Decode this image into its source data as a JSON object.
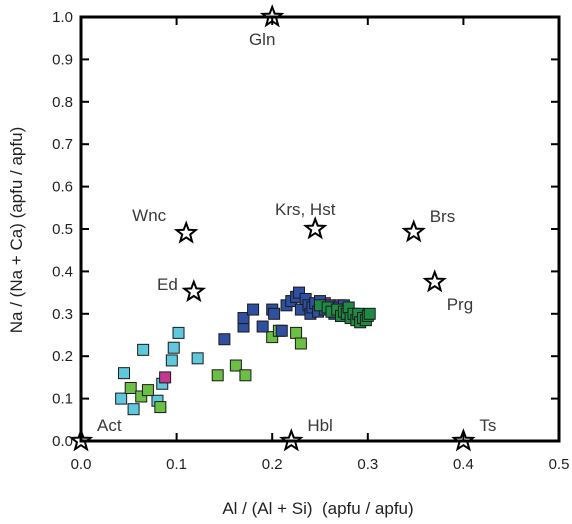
{
  "chart_data": {
    "type": "scatter",
    "title": "",
    "xlabel": "Al / (Al + Si)  (apfu / apfu)",
    "ylabel": "Na / (Na + Ca) (apfu / apfu)",
    "xlim": [
      0.0,
      0.5
    ],
    "ylim": [
      0.0,
      1.0
    ],
    "x_ticks": [
      "0.0",
      "0.1",
      "0.2",
      "0.3",
      "0.4",
      "0.5"
    ],
    "y_ticks": [
      "0.0",
      "0.1",
      "0.2",
      "0.3",
      "0.4",
      "0.5",
      "0.6",
      "0.7",
      "0.8",
      "0.9",
      "1.0"
    ],
    "grid": false,
    "end_members": [
      {
        "label": "Gln",
        "x": 0.2,
        "y": 1.0,
        "label_pos": "below"
      },
      {
        "label": "Wnc",
        "x": 0.11,
        "y": 0.49,
        "label_pos": "upper-left"
      },
      {
        "label": "Krs, Hst",
        "x": 0.245,
        "y": 0.5,
        "label_pos": "above"
      },
      {
        "label": "Brs",
        "x": 0.348,
        "y": 0.493,
        "label_pos": "upper-right"
      },
      {
        "label": "Ed",
        "x": 0.118,
        "y": 0.352,
        "label_pos": "left"
      },
      {
        "label": "Prg",
        "x": 0.37,
        "y": 0.375,
        "label_pos": "lower-right"
      },
      {
        "label": "Act",
        "x": 0.0,
        "y": 0.0,
        "label_pos": "upper-right"
      },
      {
        "label": "Hbl",
        "x": 0.22,
        "y": 0.0,
        "label_pos": "upper-right"
      },
      {
        "label": "Ts",
        "x": 0.4,
        "y": 0.0,
        "label_pos": "upper-right"
      }
    ],
    "colors": {
      "light_blue": "#5fc8dc",
      "dark_blue": "#2f4fa0",
      "light_green": "#6cbf45",
      "dark_green": "#1f8a45",
      "magenta": "#c2388f"
    },
    "series": [
      {
        "color": "light_blue",
        "points": [
          [
            0.042,
            0.1
          ],
          [
            0.045,
            0.16
          ],
          [
            0.055,
            0.075
          ],
          [
            0.065,
            0.215
          ],
          [
            0.08,
            0.095
          ],
          [
            0.085,
            0.135
          ],
          [
            0.095,
            0.19
          ],
          [
            0.097,
            0.22
          ],
          [
            0.102,
            0.255
          ],
          [
            0.122,
            0.195
          ]
        ]
      },
      {
        "color": "light_green",
        "points": [
          [
            0.052,
            0.125
          ],
          [
            0.063,
            0.105
          ],
          [
            0.07,
            0.12
          ],
          [
            0.083,
            0.08
          ],
          [
            0.143,
            0.155
          ],
          [
            0.162,
            0.178
          ],
          [
            0.172,
            0.155
          ],
          [
            0.2,
            0.245
          ],
          [
            0.207,
            0.26
          ],
          [
            0.225,
            0.255
          ],
          [
            0.23,
            0.23
          ]
        ]
      },
      {
        "color": "magenta",
        "points": [
          [
            0.088,
            0.15
          ],
          [
            0.255,
            0.325
          ],
          [
            0.27,
            0.32
          ]
        ]
      },
      {
        "color": "dark_blue",
        "points": [
          [
            0.15,
            0.24
          ],
          [
            0.17,
            0.27
          ],
          [
            0.17,
            0.29
          ],
          [
            0.18,
            0.31
          ],
          [
            0.19,
            0.27
          ],
          [
            0.2,
            0.31
          ],
          [
            0.202,
            0.3
          ],
          [
            0.21,
            0.26
          ],
          [
            0.215,
            0.32
          ],
          [
            0.22,
            0.33
          ],
          [
            0.225,
            0.34
          ],
          [
            0.228,
            0.35
          ],
          [
            0.23,
            0.31
          ],
          [
            0.235,
            0.335
          ],
          [
            0.238,
            0.32
          ],
          [
            0.24,
            0.3
          ],
          [
            0.242,
            0.315
          ],
          [
            0.245,
            0.325
          ],
          [
            0.248,
            0.305
          ],
          [
            0.25,
            0.33
          ],
          [
            0.255,
            0.31
          ],
          [
            0.26,
            0.32
          ],
          [
            0.265,
            0.3
          ],
          [
            0.27,
            0.315
          ],
          [
            0.272,
            0.295
          ],
          [
            0.275,
            0.32
          ]
        ]
      },
      {
        "color": "dark_green",
        "points": [
          [
            0.25,
            0.32
          ],
          [
            0.258,
            0.315
          ],
          [
            0.262,
            0.305
          ],
          [
            0.268,
            0.31
          ],
          [
            0.272,
            0.295
          ],
          [
            0.275,
            0.305
          ],
          [
            0.278,
            0.3
          ],
          [
            0.28,
            0.315
          ],
          [
            0.282,
            0.29
          ],
          [
            0.285,
            0.3
          ],
          [
            0.288,
            0.285
          ],
          [
            0.29,
            0.3
          ],
          [
            0.292,
            0.28
          ],
          [
            0.295,
            0.29
          ],
          [
            0.298,
            0.285
          ],
          [
            0.3,
            0.295
          ],
          [
            0.302,
            0.3
          ]
        ]
      }
    ]
  }
}
